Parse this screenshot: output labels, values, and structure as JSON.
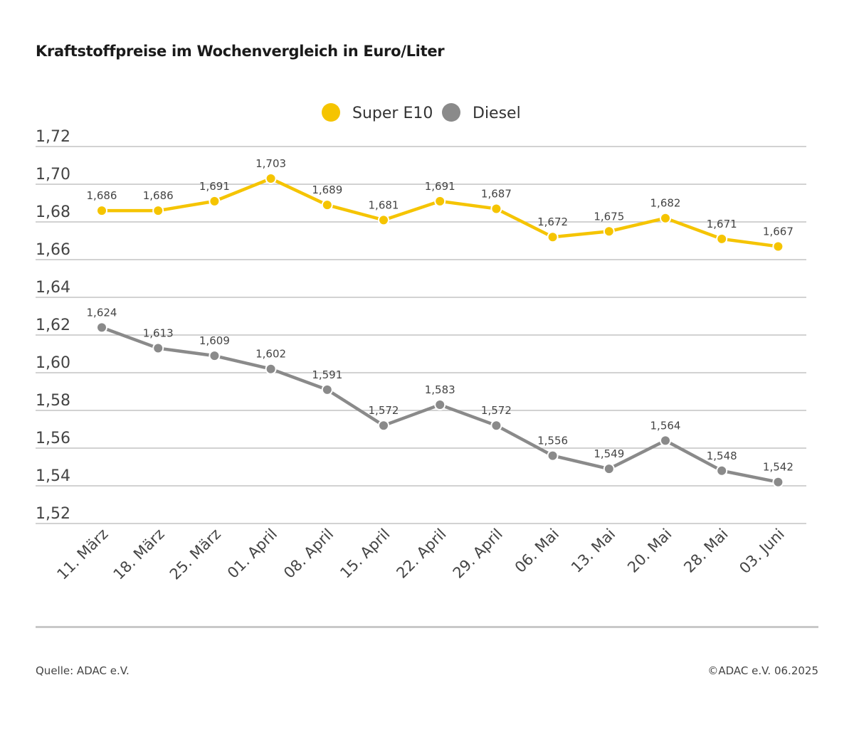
{
  "page": {
    "source": "Quelle: ADAC e.V.",
    "copyright": "©ADAC e.V. 06.2025"
  },
  "chart_data": {
    "type": "line",
    "title": "Kraftstoffpreise im Wochenvergleich in Euro/Liter",
    "xlabel": "",
    "ylabel": "",
    "categories": [
      "11. März",
      "18. März",
      "25. März",
      "01. April",
      "08. April",
      "15. April",
      "22. April",
      "29. April",
      "06. Mai",
      "13. Mai",
      "20. Mai",
      "28. Mai",
      "03. Juni"
    ],
    "ylim": [
      1.52,
      1.72
    ],
    "yticks": [
      "1,72",
      "1,70",
      "1,68",
      "1,66",
      "1,64",
      "1,62",
      "1,60",
      "1,58",
      "1,56",
      "1,54",
      "1,52"
    ],
    "ytick_values": [
      1.72,
      1.7,
      1.68,
      1.66,
      1.64,
      1.62,
      1.6,
      1.58,
      1.56,
      1.54,
      1.52
    ],
    "grid": true,
    "legend_position": "top-center",
    "series": [
      {
        "name": "Super E10",
        "color": "#f5c400",
        "values": [
          1.686,
          1.686,
          1.691,
          1.703,
          1.689,
          1.681,
          1.691,
          1.687,
          1.672,
          1.675,
          1.682,
          1.671,
          1.667
        ],
        "labels": [
          "1,686",
          "1,686",
          "1,691",
          "1,703",
          "1,689",
          "1,681",
          "1,691",
          "1,687",
          "1,672",
          "1,675",
          "1,682",
          "1,671",
          "1,667"
        ]
      },
      {
        "name": "Diesel",
        "color": "#8a8a8a",
        "values": [
          1.624,
          1.613,
          1.609,
          1.602,
          1.591,
          1.572,
          1.583,
          1.572,
          1.556,
          1.549,
          1.564,
          1.548,
          1.542
        ],
        "labels": [
          "1,624",
          "1,613",
          "1,609",
          "1,602",
          "1,591",
          "1,572",
          "1,583",
          "1,572",
          "1,556",
          "1,549",
          "1,564",
          "1,548",
          "1,542"
        ]
      }
    ]
  }
}
